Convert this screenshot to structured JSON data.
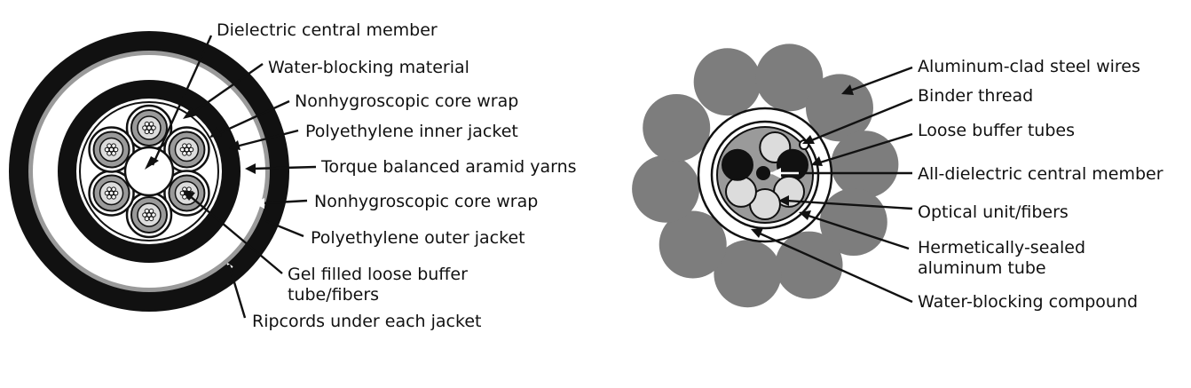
{
  "diagrams": [
    {
      "id": "left-cable",
      "labels": [
        "Dielectric central member",
        "Water-blocking material",
        "Nonhygroscopic core wrap",
        "Polyethylene inner jacket",
        "Torque balanced aramid yarns",
        "Nonhygroscopic core wrap",
        "Polyethylene outer jacket",
        "Gel filled loose buffer",
        "tube/fibers",
        "Ripcords under each jacket"
      ]
    },
    {
      "id": "right-cable",
      "labels": [
        "Aluminum-clad steel wires",
        "Binder thread",
        "Loose buffer tubes",
        "All-dielectric central member",
        "Optical unit/fibers",
        "Hermetically-sealed",
        "aluminum tube",
        "Water-blocking compound"
      ]
    }
  ],
  "colors": {
    "ink": "#111111",
    "jacket_gray": "#9a9a9a",
    "wire_gray": "#7d7d7d",
    "tube_light": "#dcdcdc",
    "paper": "#ffffff"
  }
}
